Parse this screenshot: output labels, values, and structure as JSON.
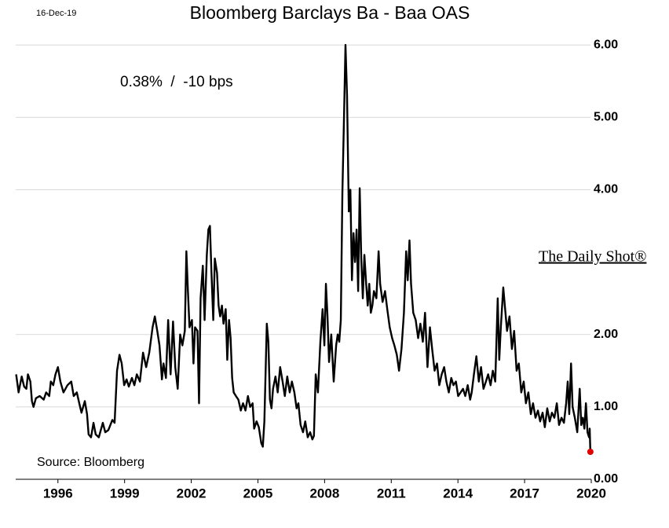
{
  "chart_data": {
    "type": "line",
    "title": "Bloomberg Barclays Ba - Baa OAS",
    "date_label": "16-Dec-19",
    "annotation": "0.38%  /  -10 bps",
    "source": "Source: Bloomberg",
    "watermark": "The Daily Shot®",
    "xlim": [
      1994.1,
      2020.0
    ],
    "xticks": [
      1996,
      1999,
      2002,
      2005,
      2008,
      2011,
      2014,
      2017,
      2020
    ],
    "ylim": [
      0,
      6.1
    ],
    "yticks": [
      {
        "value": 0,
        "label": "0.00"
      },
      {
        "value": 1,
        "label": "1.00"
      },
      {
        "value": 2,
        "label": "2.00"
      },
      {
        "value": 4,
        "label": "4.00"
      },
      {
        "value": 5,
        "label": "5.00"
      },
      {
        "value": 6,
        "label": "6.00"
      }
    ],
    "grid": true,
    "last_point_color": "#e00000",
    "x": [
      1994.12,
      1994.23,
      1994.37,
      1994.48,
      1994.58,
      1994.65,
      1994.76,
      1994.83,
      1994.9,
      1995.01,
      1995.18,
      1995.36,
      1995.47,
      1995.61,
      1995.68,
      1995.79,
      1995.89,
      1996.0,
      1996.11,
      1996.25,
      1996.43,
      1996.6,
      1996.71,
      1996.85,
      1996.96,
      1997.06,
      1997.21,
      1997.31,
      1997.38,
      1997.49,
      1997.6,
      1997.7,
      1997.84,
      1998.02,
      1998.13,
      1998.27,
      1998.45,
      1998.55,
      1998.66,
      1998.77,
      1998.87,
      1998.98,
      1999.09,
      1999.19,
      1999.33,
      1999.44,
      1999.55,
      1999.69,
      1999.83,
      1999.97,
      2000.11,
      2000.26,
      2000.36,
      2000.47,
      2000.57,
      2000.68,
      2000.75,
      2000.86,
      2000.96,
      2001.07,
      2001.18,
      2001.28,
      2001.39,
      2001.5,
      2001.6,
      2001.71,
      2001.78,
      2001.85,
      2001.92,
      2002.03,
      2002.1,
      2002.17,
      2002.28,
      2002.35,
      2002.42,
      2002.52,
      2002.6,
      2002.7,
      2002.77,
      2002.84,
      2002.91,
      2002.99,
      2003.06,
      2003.16,
      2003.23,
      2003.3,
      2003.38,
      2003.45,
      2003.55,
      2003.62,
      2003.7,
      2003.77,
      2003.84,
      2003.91,
      2004.01,
      2004.12,
      2004.23,
      2004.33,
      2004.44,
      2004.55,
      2004.65,
      2004.76,
      2004.83,
      2004.94,
      2005.04,
      2005.15,
      2005.22,
      2005.29,
      2005.4,
      2005.47,
      2005.54,
      2005.61,
      2005.68,
      2005.79,
      2005.89,
      2006.0,
      2006.11,
      2006.21,
      2006.32,
      2006.43,
      2006.53,
      2006.64,
      2006.74,
      2006.82,
      2006.92,
      2007.03,
      2007.13,
      2007.24,
      2007.35,
      2007.45,
      2007.52,
      2007.6,
      2007.7,
      2007.81,
      2007.91,
      2007.99,
      2008.06,
      2008.13,
      2008.2,
      2008.3,
      2008.41,
      2008.52,
      2008.59,
      2008.66,
      2008.73,
      2008.8,
      2008.87,
      2008.94,
      2009.01,
      2009.09,
      2009.16,
      2009.23,
      2009.3,
      2009.37,
      2009.44,
      2009.51,
      2009.58,
      2009.65,
      2009.72,
      2009.79,
      2009.87,
      2009.94,
      2010.01,
      2010.08,
      2010.15,
      2010.22,
      2010.33,
      2010.43,
      2010.5,
      2010.61,
      2010.72,
      2010.82,
      2010.93,
      2011.04,
      2011.14,
      2011.25,
      2011.35,
      2011.46,
      2011.57,
      2011.67,
      2011.74,
      2011.82,
      2011.89,
      2011.99,
      2012.1,
      2012.21,
      2012.31,
      2012.42,
      2012.52,
      2012.63,
      2012.74,
      2012.84,
      2012.95,
      2013.06,
      2013.16,
      2013.27,
      2013.38,
      2013.48,
      2013.59,
      2013.7,
      2013.8,
      2013.91,
      2014.01,
      2014.12,
      2014.23,
      2014.33,
      2014.44,
      2014.55,
      2014.62,
      2014.72,
      2014.83,
      2014.94,
      2015.04,
      2015.15,
      2015.26,
      2015.36,
      2015.47,
      2015.57,
      2015.68,
      2015.79,
      2015.86,
      2015.93,
      2016.04,
      2016.11,
      2016.21,
      2016.32,
      2016.43,
      2016.53,
      2016.64,
      2016.74,
      2016.85,
      2016.96,
      2017.06,
      2017.17,
      2017.28,
      2017.38,
      2017.49,
      2017.6,
      2017.7,
      2017.81,
      2017.91,
      2018.02,
      2018.13,
      2018.23,
      2018.34,
      2018.45,
      2018.55,
      2018.66,
      2018.77,
      2018.87,
      2018.94,
      2019.01,
      2019.09,
      2019.16,
      2019.26,
      2019.37,
      2019.48,
      2019.55,
      2019.62,
      2019.69,
      2019.76,
      2019.83,
      2019.9,
      2019.93,
      2019.95,
      2019.96
    ],
    "series": [
      {
        "name": "Ba - Baa OAS",
        "color": "#000000",
        "values": [
          1.45,
          1.2,
          1.42,
          1.28,
          1.25,
          1.45,
          1.35,
          1.08,
          1.0,
          1.12,
          1.15,
          1.1,
          1.2,
          1.15,
          1.35,
          1.3,
          1.45,
          1.55,
          1.35,
          1.2,
          1.3,
          1.35,
          1.15,
          1.2,
          1.05,
          0.92,
          1.08,
          0.9,
          0.62,
          0.58,
          0.78,
          0.62,
          0.58,
          0.78,
          0.65,
          0.68,
          0.82,
          0.78,
          1.5,
          1.72,
          1.6,
          1.3,
          1.38,
          1.28,
          1.4,
          1.3,
          1.45,
          1.35,
          1.75,
          1.55,
          1.75,
          2.1,
          2.25,
          2.05,
          1.85,
          1.38,
          1.6,
          1.4,
          2.2,
          1.45,
          2.18,
          1.55,
          1.25,
          2.0,
          1.85,
          2.05,
          3.15,
          2.6,
          2.1,
          2.2,
          1.6,
          2.1,
          2.05,
          1.05,
          2.5,
          2.95,
          2.2,
          3.1,
          3.45,
          3.5,
          2.85,
          2.2,
          3.05,
          2.85,
          2.4,
          2.25,
          2.4,
          2.15,
          2.35,
          1.65,
          2.2,
          1.95,
          1.4,
          1.2,
          1.15,
          1.1,
          0.95,
          1.05,
          0.95,
          1.15,
          1.0,
          1.05,
          0.7,
          0.8,
          0.72,
          0.5,
          0.45,
          0.8,
          2.15,
          1.9,
          1.1,
          0.98,
          1.25,
          1.42,
          1.2,
          1.55,
          1.35,
          1.15,
          1.42,
          1.2,
          1.35,
          1.2,
          0.98,
          1.05,
          0.75,
          0.65,
          0.8,
          0.58,
          0.65,
          0.55,
          0.6,
          1.45,
          1.2,
          1.9,
          2.35,
          1.85,
          2.7,
          2.25,
          1.62,
          2.0,
          1.35,
          1.85,
          2.0,
          1.9,
          2.2,
          3.95,
          4.95,
          6.0,
          5.3,
          3.7,
          4.0,
          2.75,
          3.4,
          3.0,
          3.45,
          2.6,
          4.02,
          3.05,
          2.5,
          3.1,
          2.7,
          2.4,
          2.7,
          2.3,
          2.4,
          2.6,
          2.5,
          3.15,
          2.7,
          2.45,
          2.6,
          2.35,
          2.1,
          1.95,
          1.85,
          1.72,
          1.5,
          1.8,
          2.3,
          3.15,
          2.75,
          3.3,
          2.7,
          2.3,
          2.2,
          1.95,
          2.15,
          1.9,
          2.3,
          1.55,
          2.1,
          1.8,
          1.5,
          1.6,
          1.3,
          1.45,
          1.55,
          1.35,
          1.2,
          1.4,
          1.3,
          1.35,
          1.15,
          1.2,
          1.25,
          1.15,
          1.3,
          1.1,
          1.2,
          1.45,
          1.7,
          1.35,
          1.55,
          1.25,
          1.35,
          1.45,
          1.3,
          1.5,
          1.35,
          2.5,
          1.65,
          2.1,
          2.65,
          2.4,
          2.05,
          2.25,
          1.8,
          2.05,
          1.5,
          1.6,
          1.2,
          1.35,
          1.05,
          1.2,
          0.9,
          1.05,
          0.85,
          0.95,
          0.8,
          0.92,
          0.72,
          0.98,
          0.8,
          0.92,
          0.85,
          1.05,
          0.75,
          0.85,
          0.78,
          1.05,
          1.35,
          0.9,
          1.6,
          1.0,
          0.85,
          0.65,
          1.25,
          0.75,
          0.85,
          0.7,
          1.05,
          0.65,
          0.58,
          0.7,
          0.48,
          0.38
        ]
      }
    ]
  }
}
